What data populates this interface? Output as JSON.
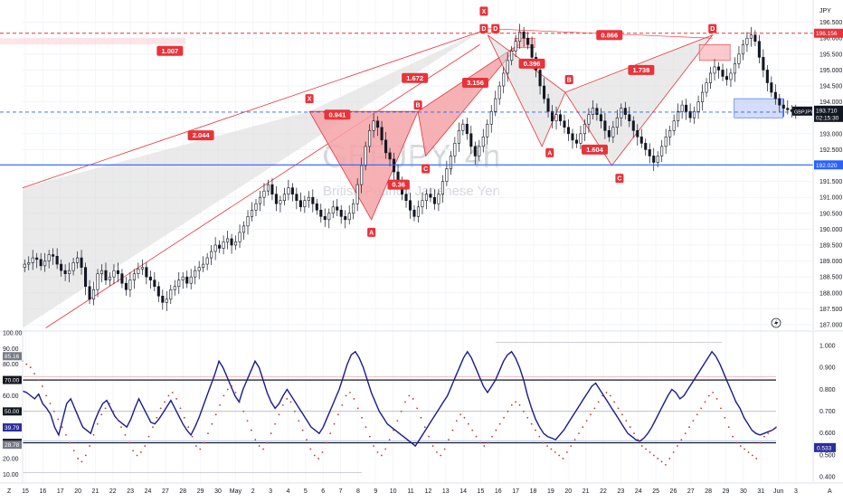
{
  "chart_data": [
    {
      "type": "candlestick",
      "title": "GBPJPY, 4h",
      "subtitle": "British Pound / Japanese Yen",
      "currency": "JPY",
      "symbol_tag": "GBPJPY",
      "last_price": 193.71,
      "last_price_label": "193.710",
      "countdown": "02:15:30",
      "ylim": [
        186.8,
        197.2
      ],
      "y_ticks": [
        187.0,
        187.5,
        188.0,
        188.5,
        189.0,
        189.5,
        190.0,
        190.5,
        191.0,
        191.5,
        192.0,
        192.5,
        193.0,
        193.5,
        194.0,
        194.5,
        195.0,
        195.5,
        196.0,
        196.5
      ],
      "y_tick_labels": [
        "187.000",
        "187.500",
        "188.000",
        "188.500",
        "189.000",
        "189.500",
        "190.000",
        "190.500",
        "191.000",
        "191.500",
        "192.000",
        "192.500",
        "193.000",
        "193.500",
        "194.000",
        "194.500",
        "195.000",
        "195.500",
        "196.000",
        "196.500"
      ],
      "x_tick_labels": [
        "15",
        "16",
        "17",
        "20",
        "21",
        "22",
        "23",
        "24",
        "27",
        "28",
        "29",
        "30",
        "May",
        "2",
        "3",
        "4",
        "5",
        "6",
        "7",
        "8",
        "9",
        "10",
        "11",
        "12",
        "13",
        "14",
        "15",
        "16",
        "17",
        "18",
        "19",
        "20",
        "21",
        "22",
        "23",
        "24",
        "25",
        "26",
        "27",
        "28",
        "29",
        "30",
        "31",
        "Jun",
        "3"
      ],
      "close_series": [
        188.9,
        188.95,
        189.1,
        189.05,
        188.85,
        189.0,
        189.2,
        189.15,
        188.9,
        188.7,
        188.6,
        188.7,
        188.95,
        189.1,
        188.8,
        188.2,
        187.8,
        188.1,
        188.6,
        188.7,
        188.4,
        188.5,
        188.7,
        188.6,
        188.3,
        188.1,
        188.4,
        188.6,
        188.75,
        188.8,
        188.5,
        188.4,
        188.2,
        187.9,
        187.7,
        187.8,
        188.1,
        188.2,
        188.4,
        188.5,
        188.3,
        188.5,
        188.7,
        188.8,
        188.9,
        189.1,
        189.3,
        189.5,
        189.4,
        189.6,
        189.7,
        189.5,
        189.6,
        189.9,
        190.1,
        190.4,
        190.6,
        190.8,
        191.0,
        191.2,
        191.4,
        191.1,
        190.8,
        190.9,
        191.1,
        191.3,
        191.1,
        190.9,
        190.7,
        190.9,
        191.0,
        190.8,
        190.6,
        190.4,
        190.3,
        190.5,
        190.7,
        190.6,
        190.4,
        190.3,
        190.5,
        190.8,
        191.4,
        192.0,
        192.6,
        193.1,
        193.4,
        193.2,
        192.8,
        192.4,
        192.2,
        191.8,
        191.5,
        191.1,
        190.9,
        190.6,
        190.4,
        190.7,
        190.9,
        191.1,
        191.0,
        190.8,
        191.1,
        191.5,
        191.9,
        192.3,
        192.7,
        193.1,
        193.3,
        193.0,
        192.6,
        192.3,
        192.6,
        192.9,
        193.3,
        193.7,
        194.1,
        194.5,
        194.9,
        195.3,
        195.6,
        195.9,
        196.2,
        196.0,
        195.8,
        195.4,
        195.0,
        194.5,
        194.1,
        193.7,
        193.4,
        193.6,
        193.4,
        193.2,
        193.0,
        192.8,
        192.7,
        193.0,
        193.3,
        193.6,
        193.8,
        193.6,
        193.4,
        193.1,
        192.9,
        193.2,
        193.5,
        193.8,
        193.6,
        193.4,
        193.1,
        192.9,
        192.7,
        192.5,
        192.3,
        192.1,
        192.3,
        192.6,
        192.9,
        193.1,
        193.4,
        193.7,
        193.9,
        193.7,
        193.5,
        193.7,
        194.0,
        194.3,
        194.6,
        194.9,
        195.1,
        195.0,
        194.8,
        194.7,
        194.9,
        195.2,
        195.5,
        195.8,
        196.0,
        196.1,
        195.9,
        195.4,
        195.0,
        194.6,
        194.3,
        194.1,
        193.9,
        193.8,
        193.75,
        193.7,
        193.71
      ],
      "reference_lines": [
        {
          "label": "196.156",
          "value": 196.156,
          "color": "#e8333a",
          "style": "dashed"
        },
        {
          "label": "193.678",
          "value": 193.678,
          "color": "#2962ff",
          "style": "dashed"
        },
        {
          "label": "192.020",
          "value": 192.02,
          "color": "#2962ff",
          "style": "solid"
        }
      ],
      "pattern_points": [
        "X",
        "A",
        "B",
        "C",
        "D",
        "X",
        "D",
        "A",
        "B",
        "C",
        "D"
      ],
      "ratio_labels": [
        "1.007",
        "2.044",
        "0.941",
        "0.36",
        "1.672",
        "3.156",
        "0.396",
        "0.866",
        "1.738",
        "1.604"
      ],
      "watermark_big": "GBPJPY, 4h",
      "watermark_small": "British Pound / Japanese Yen",
      "colors": {
        "up": "#131722",
        "down": "#131722",
        "pattern": "#e8333a",
        "pattern_fill": "#f4a3a8",
        "grey_fill": "#d9d9d9",
        "blue": "#2962ff"
      }
    },
    {
      "type": "line",
      "name": "RSI",
      "ylim": [
        0,
        100
      ],
      "y_ticks": [
        10,
        20,
        30,
        40,
        50,
        60,
        70,
        80,
        90,
        100
      ],
      "y_tick_labels": [
        "10.00",
        "20.00",
        "30.00",
        "40.00",
        "50.00",
        "60.00",
        "70.00",
        "80.00",
        "90.00",
        "100.00"
      ],
      "badges": [
        "85.16",
        "70.00",
        "50.00",
        "39.79",
        "30.00",
        "28.78"
      ],
      "levels": [
        70,
        50,
        30
      ],
      "right_axis_ticks": [
        "1.000",
        "0.900",
        "0.800",
        "0.700",
        "0.600",
        "0.500",
        "0.400"
      ],
      "right_value_badge": "0.533",
      "rsi_values": [
        63,
        62,
        60,
        58,
        61,
        55,
        52,
        48,
        40,
        35,
        45,
        55,
        58,
        52,
        46,
        40,
        38,
        36,
        44,
        50,
        55,
        57,
        52,
        47,
        44,
        42,
        40,
        45,
        52,
        58,
        53,
        48,
        43,
        42,
        45,
        49,
        53,
        57,
        52,
        47,
        42,
        38,
        35,
        40,
        46,
        53,
        60,
        67,
        74,
        82,
        78,
        72,
        66,
        60,
        56,
        64,
        70,
        76,
        82,
        78,
        70,
        62,
        56,
        52,
        55,
        60,
        64,
        60,
        56,
        52,
        48,
        44,
        40,
        38,
        36,
        40,
        46,
        52,
        58,
        64,
        72,
        80,
        86,
        88,
        84,
        78,
        70,
        62,
        56,
        50,
        46,
        42,
        40,
        38,
        36,
        34,
        32,
        30,
        28,
        32,
        36,
        40,
        44,
        48,
        52,
        56,
        60,
        66,
        72,
        78,
        84,
        88,
        84,
        78,
        72,
        66,
        62,
        66,
        70,
        76,
        82,
        86,
        88,
        84,
        78,
        70,
        60,
        52,
        45,
        40,
        36,
        34,
        33,
        32,
        35,
        38,
        42,
        46,
        50,
        54,
        58,
        62,
        66,
        68,
        64,
        60,
        56,
        52,
        48,
        44,
        40,
        36,
        34,
        32,
        31,
        33,
        36,
        40,
        45,
        50,
        55,
        60,
        64,
        62,
        58,
        60,
        64,
        68,
        72,
        76,
        80,
        84,
        88,
        85,
        80,
        74,
        68,
        62,
        56,
        52,
        46,
        42,
        38,
        36,
        35,
        36,
        37,
        38,
        39.79
      ],
      "dots_values": [
        82,
        80,
        78,
        74,
        70,
        66,
        60,
        55,
        50,
        45,
        40,
        35,
        30,
        25,
        20,
        18,
        22,
        28,
        35,
        42,
        48,
        52,
        55,
        50,
        45,
        40,
        35,
        30,
        25,
        22,
        24,
        28,
        34,
        40,
        46,
        52,
        56,
        60,
        62,
        58,
        52,
        46,
        40,
        34,
        28,
        26,
        30,
        36,
        42,
        48,
        54,
        60,
        64,
        66,
        62,
        56,
        50,
        44,
        38,
        32,
        28,
        26,
        30,
        36,
        42,
        48,
        54,
        58,
        56,
        50,
        44,
        38,
        32,
        26,
        22,
        20,
        24,
        30,
        36,
        42,
        48,
        54,
        60,
        62,
        58,
        52,
        46,
        40,
        34,
        28,
        24,
        22,
        26,
        32,
        38,
        44,
        50,
        56,
        60,
        58,
        52,
        46,
        40,
        34,
        28,
        24,
        22,
        26,
        32,
        38,
        44,
        48,
        46,
        42,
        38,
        34,
        30,
        28,
        30,
        34,
        38,
        42,
        46,
        50,
        54,
        56,
        54,
        50,
        46,
        42,
        38,
        34,
        30,
        28,
        26,
        24,
        22,
        20,
        24,
        28,
        32,
        36,
        40,
        44,
        48,
        52,
        56,
        60,
        62,
        60,
        56,
        52,
        48,
        44,
        40,
        36,
        32,
        28,
        26,
        24,
        22,
        20,
        18,
        16,
        20,
        24,
        28,
        32,
        36,
        40,
        44,
        48,
        52,
        56,
        60,
        62,
        58,
        52,
        46,
        40,
        34,
        30,
        28,
        26,
        24,
        22,
        20,
        30,
        34,
        36,
        38,
        40
      ]
    }
  ],
  "axis": {
    "left_letter": "Z",
    "right_letter": "A"
  }
}
